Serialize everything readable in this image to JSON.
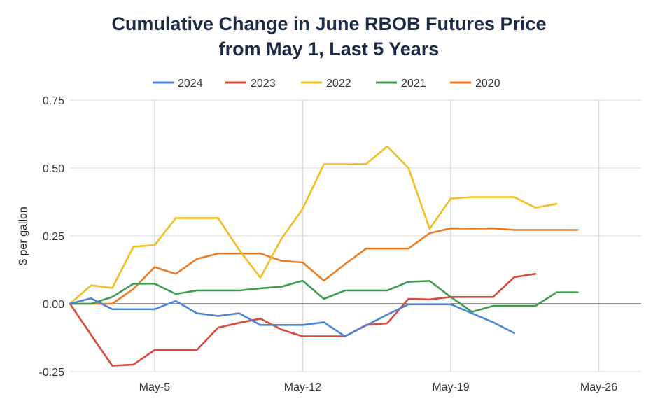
{
  "chart_data": {
    "type": "line",
    "title_line1": "Cumulative Change in June RBOB Futures Price",
    "title_line2": "from May 1, Last 5 Years",
    "xlabel": "",
    "ylabel": "$ per gallon",
    "ylim": [
      -0.25,
      0.75
    ],
    "yticks": [
      -0.25,
      0,
      0.25,
      0.5,
      0.75
    ],
    "ytick_labels": [
      "-0.25",
      "0.00",
      "0.25",
      "0.50",
      "0.75"
    ],
    "xlim": [
      1,
      28
    ],
    "xticks": [
      5,
      12,
      19,
      26
    ],
    "xtick_labels": [
      "May-5",
      "May-12",
      "May-19",
      "May-26"
    ],
    "grid": true,
    "legend_position": "top",
    "series": [
      {
        "name": "2024",
        "color": "#4a86d8",
        "x": [
          1,
          2,
          3,
          4,
          5,
          6,
          7,
          8,
          9,
          10,
          11,
          12,
          13,
          14,
          15,
          16,
          17,
          18,
          19,
          20,
          21,
          22
        ],
        "values": [
          0.0,
          0.02,
          -0.02,
          -0.02,
          -0.02,
          0.01,
          -0.035,
          -0.045,
          -0.035,
          -0.078,
          -0.078,
          -0.078,
          -0.068,
          -0.12,
          -0.08,
          -0.04,
          -0.002,
          -0.002,
          -0.002,
          -0.035,
          -0.068,
          -0.108
        ]
      },
      {
        "name": "2023",
        "color": "#d94a3a",
        "x": [
          1,
          2,
          3,
          4,
          5,
          6,
          7,
          8,
          9,
          10,
          11,
          12,
          13,
          14,
          15,
          16,
          17,
          18,
          19,
          20,
          21,
          22,
          23
        ],
        "values": [
          0.0,
          -0.115,
          -0.228,
          -0.224,
          -0.17,
          -0.17,
          -0.17,
          -0.088,
          -0.07,
          -0.055,
          -0.095,
          -0.12,
          -0.12,
          -0.12,
          -0.078,
          -0.072,
          0.018,
          0.016,
          0.025,
          0.025,
          0.025,
          0.098,
          0.11
        ]
      },
      {
        "name": "2022",
        "color": "#f2be22",
        "x": [
          1,
          2,
          3,
          4,
          5,
          6,
          7,
          8,
          9,
          10,
          11,
          12,
          13,
          14,
          15,
          16,
          17,
          18,
          19,
          20,
          21,
          22,
          23,
          24
        ],
        "values": [
          0.0,
          0.068,
          0.058,
          0.21,
          0.216,
          0.316,
          0.316,
          0.316,
          0.198,
          0.096,
          0.24,
          0.35,
          0.514,
          0.514,
          0.515,
          0.58,
          0.5,
          0.276,
          0.388,
          0.393,
          0.393,
          0.393,
          0.354,
          0.368
        ]
      },
      {
        "name": "2021",
        "color": "#3e9c4e",
        "x": [
          1,
          2,
          3,
          4,
          5,
          6,
          7,
          8,
          9,
          10,
          11,
          12,
          13,
          14,
          15,
          16,
          17,
          18,
          19,
          20,
          21,
          22,
          23,
          24,
          25
        ],
        "values": [
          0.0,
          0.0,
          0.025,
          0.074,
          0.074,
          0.036,
          0.049,
          0.049,
          0.049,
          0.057,
          0.063,
          0.085,
          0.018,
          0.049,
          0.049,
          0.049,
          0.081,
          0.084,
          0.025,
          -0.03,
          -0.008,
          -0.008,
          -0.008,
          0.042,
          0.042
        ]
      },
      {
        "name": "2020",
        "color": "#ee7b22",
        "x": [
          1,
          2,
          3,
          4,
          5,
          6,
          7,
          8,
          9,
          10,
          11,
          12,
          13,
          14,
          15,
          16,
          17,
          18,
          19,
          20,
          21,
          22,
          23,
          24,
          25
        ],
        "values": [
          0.0,
          0.0,
          0.0,
          0.055,
          0.135,
          0.11,
          0.165,
          0.185,
          0.185,
          0.185,
          0.158,
          0.152,
          0.085,
          0.146,
          0.203,
          0.203,
          0.203,
          0.26,
          0.278,
          0.277,
          0.278,
          0.272,
          0.272,
          0.272,
          0.272
        ]
      }
    ]
  }
}
